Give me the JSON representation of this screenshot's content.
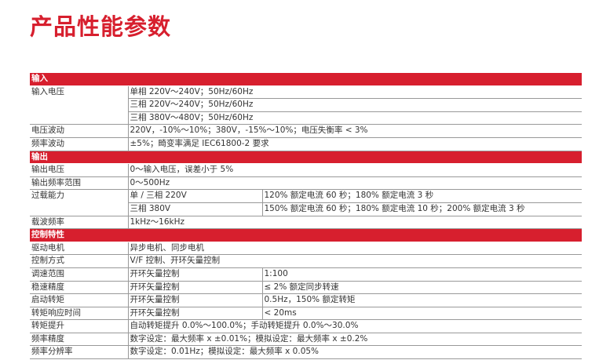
{
  "title": "产品性能参数",
  "colors": {
    "accent": "#d71f2e",
    "border": "#999999",
    "text": "#333333"
  },
  "sections": [
    {
      "label": "输入",
      "rows": [
        {
          "name": "输入电压",
          "values": [
            [
              "单相 220V～240V；50Hz/60Hz"
            ],
            [
              "三相 220V～240V；50Hz/60Hz"
            ],
            [
              "三相 380V～480V；50Hz/60Hz"
            ]
          ]
        },
        {
          "name": "电压波动",
          "values": [
            [
              "220V，-10%～10%；380V，-15%～10%；电压失衡率 < 3%"
            ]
          ]
        },
        {
          "name": "频率波动",
          "values": [
            [
              "±5%；畸变率满足 IEC61800-2 要求"
            ]
          ]
        }
      ]
    },
    {
      "label": "输出",
      "rows": [
        {
          "name": "输出电压",
          "values": [
            [
              "0～输入电压，误差小于 5%"
            ]
          ]
        },
        {
          "name": "输出频率范围",
          "values": [
            [
              "0～500Hz"
            ]
          ]
        },
        {
          "name": "过载能力",
          "values": [
            [
              "单 / 三相 220V",
              "120% 额定电流 60 秒；180% 额定电流 3 秒"
            ],
            [
              "三相 380V",
              "150% 额定电流 60 秒；180% 额定电流 10 秒；200% 额定电流 3 秒"
            ]
          ]
        },
        {
          "name": "载波频率",
          "values": [
            [
              "1kHz～16kHz"
            ]
          ]
        }
      ]
    },
    {
      "label": "控制特性",
      "rows": [
        {
          "name": "驱动电机",
          "values": [
            [
              "异步电机、同步电机"
            ]
          ]
        },
        {
          "name": "控制方式",
          "values": [
            [
              "V/F 控制、开环矢量控制"
            ]
          ]
        },
        {
          "name": "调速范围",
          "values": [
            [
              "开环矢量控制",
              "1:100"
            ]
          ]
        },
        {
          "name": "稳速精度",
          "values": [
            [
              "开环矢量控制",
              "≤ 2% 额定同步转速"
            ]
          ]
        },
        {
          "name": "启动转矩",
          "values": [
            [
              "开环矢量控制",
              "0.5Hz，150% 额定转矩"
            ]
          ]
        },
        {
          "name": "转矩响应时间",
          "values": [
            [
              "开环矢量控制",
              "< 20ms"
            ]
          ]
        },
        {
          "name": "转矩提升",
          "values": [
            [
              "自动转矩提升 0.0%～100.0%；手动转矩提升 0.0%～30.0%"
            ]
          ]
        },
        {
          "name": "频率精度",
          "values": [
            [
              "数字设定：最大频率 x ±0.01%；模拟设定：最大频率 x ±0.2%"
            ]
          ]
        },
        {
          "name": "频率分辨率",
          "values": [
            [
              "数字设定：0.01Hz；模拟设定：最大频率 x 0.05%"
            ]
          ]
        }
      ]
    }
  ]
}
